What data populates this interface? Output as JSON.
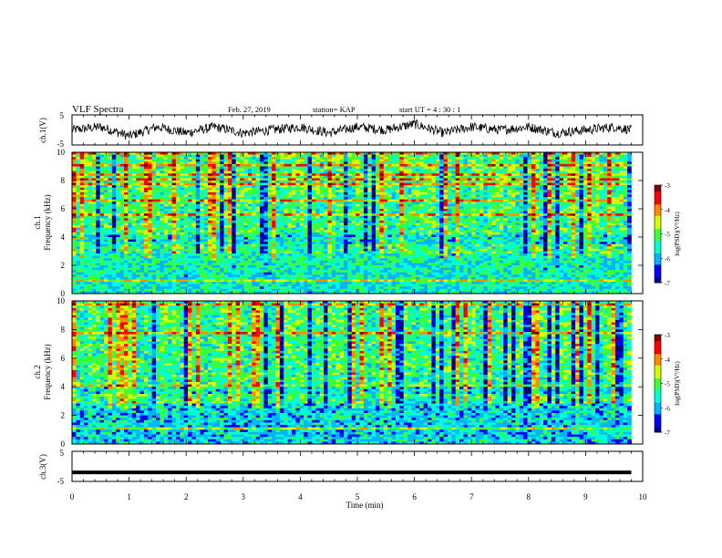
{
  "header": {
    "title": "VLF Spectra",
    "date": "Feb. 27, 2019",
    "station": "station= KAP",
    "start": "start  UT =   4 : 30 : 1"
  },
  "colors": {
    "background": "#ffffff",
    "axes": "#000000",
    "waveform": "#000000",
    "colormap": [
      "#00007f",
      "#0000ff",
      "#00b4ff",
      "#00ffd0",
      "#3cff3c",
      "#d2ff00",
      "#ff8c00",
      "#ff0000",
      "#7f0000"
    ]
  },
  "chart_data": [
    {
      "id": "ch1-waveform",
      "type": "line",
      "ylabel": "ch.1(V)",
      "ylim": [
        -5,
        5
      ],
      "yticks": [
        5,
        -5
      ],
      "xlim": [
        0,
        10
      ],
      "series": [
        {
          "x": [
            0,
            0.5,
            1,
            1.5,
            2,
            2.5,
            3,
            3.5,
            4,
            4.5,
            5,
            5.5,
            6,
            6.5,
            7,
            7.5,
            8,
            8.5,
            9,
            9.5,
            9.8
          ],
          "values": [
            0,
            1,
            -2,
            1,
            -1,
            1,
            -1,
            0,
            1,
            -1,
            1,
            0,
            2,
            -1,
            1,
            0,
            1,
            -1,
            0,
            1,
            0
          ]
        }
      ]
    },
    {
      "id": "ch1-spectrogram",
      "type": "heatmap",
      "ylabel": "ch.1\nFrequency (kHz)",
      "ylim": [
        0,
        10
      ],
      "yticks": [
        0,
        2,
        4,
        6,
        8,
        10
      ],
      "xlim": [
        0,
        10
      ],
      "data_end_min": 9.8,
      "colorbar": {
        "label": "log(PSD)(V²/Hz)",
        "range": [
          -7,
          -3
        ],
        "ticks": [
          -3,
          -4,
          -5,
          -6,
          -7
        ]
      }
    },
    {
      "id": "ch2-spectrogram",
      "type": "heatmap",
      "ylabel": "ch.2\nFrequency (kHz)",
      "ylim": [
        0,
        10
      ],
      "yticks": [
        0,
        2,
        4,
        6,
        8,
        10
      ],
      "xlim": [
        0,
        10
      ],
      "data_end_min": 9.8,
      "colorbar": {
        "label": "log(PSD)(V²/Hz)",
        "range": [
          -7,
          -3
        ],
        "ticks": [
          -3,
          -4,
          -5,
          -6,
          -7
        ]
      }
    },
    {
      "id": "ch3-waveform",
      "type": "line",
      "ylabel": "ch.3(V)",
      "ylim": [
        -5,
        5
      ],
      "yticks": [
        5,
        -5
      ],
      "xlim": [
        0,
        10
      ],
      "xlabel": "Time (min)",
      "xticks": [
        0,
        1,
        2,
        3,
        4,
        5,
        6,
        7,
        8,
        9,
        10
      ],
      "series": [
        {
          "x": [
            0,
            9.8
          ],
          "values": [
            -2,
            -2
          ]
        }
      ]
    }
  ]
}
